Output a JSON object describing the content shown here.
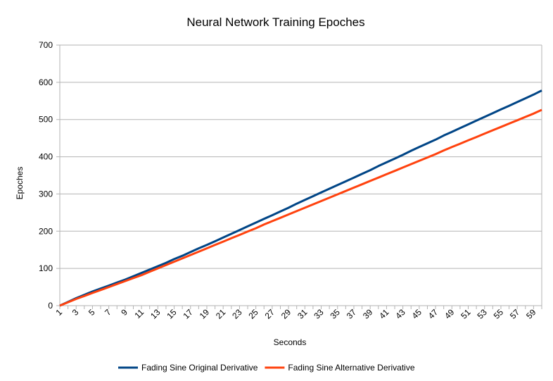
{
  "chart_data": {
    "type": "line",
    "title": "Neural Network Training Epoches",
    "xlabel": "Seconds",
    "ylabel": "Epoches",
    "ylim": [
      0,
      700
    ],
    "yticks": [
      0,
      100,
      200,
      300,
      400,
      500,
      600,
      700
    ],
    "x": [
      1,
      2,
      3,
      4,
      5,
      6,
      7,
      8,
      9,
      10,
      11,
      12,
      13,
      14,
      15,
      16,
      17,
      18,
      19,
      20,
      21,
      22,
      23,
      24,
      25,
      26,
      27,
      28,
      29,
      30,
      31,
      32,
      33,
      34,
      35,
      36,
      37,
      38,
      39,
      40,
      41,
      42,
      43,
      44,
      45,
      46,
      47,
      48,
      49,
      50,
      51,
      52,
      53,
      54,
      55,
      56,
      57,
      58,
      59,
      60
    ],
    "xticks": [
      1,
      3,
      5,
      7,
      9,
      11,
      13,
      15,
      17,
      19,
      21,
      23,
      25,
      27,
      29,
      31,
      33,
      35,
      37,
      39,
      41,
      43,
      45,
      47,
      49,
      51,
      53,
      55,
      57,
      59
    ],
    "grid": true,
    "legend_position": "bottom",
    "series": [
      {
        "name": "Fading Sine Original Derivative",
        "color": "#004586",
        "values": [
          0,
          10,
          20,
          29,
          38,
          46,
          54,
          62,
          70,
          79,
          88,
          97,
          106,
          115,
          125,
          134,
          144,
          154,
          163,
          173,
          183,
          193,
          203,
          213,
          223,
          233,
          243,
          253,
          263,
          274,
          284,
          294,
          304,
          314,
          324,
          334,
          344,
          354,
          364,
          375,
          385,
          395,
          405,
          416,
          426,
          436,
          446,
          457,
          467,
          477,
          487,
          497,
          507,
          517,
          527,
          537,
          547,
          557,
          567,
          578
        ]
      },
      {
        "name": "Fading Sine Alternative Derivative",
        "color": "#ff420e",
        "values": [
          0,
          9,
          18,
          26,
          34,
          42,
          50,
          58,
          66,
          74,
          82,
          91,
          100,
          109,
          118,
          127,
          136,
          145,
          154,
          163,
          172,
          181,
          190,
          199,
          208,
          218,
          227,
          236,
          245,
          254,
          263,
          272,
          281,
          290,
          299,
          308,
          317,
          326,
          335,
          344,
          353,
          362,
          371,
          380,
          389,
          398,
          407,
          417,
          426,
          435,
          444,
          453,
          462,
          471,
          480,
          489,
          498,
          507,
          516,
          526
        ]
      }
    ]
  }
}
